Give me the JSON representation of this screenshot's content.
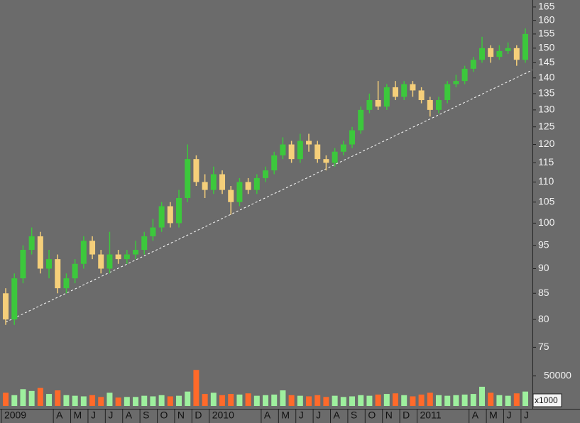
{
  "chart_data": [
    {
      "type": "candlestick",
      "x": [
        0.25,
        0.75,
        1.25,
        1.75,
        2.25,
        2.75,
        3.25,
        3.75,
        4.25,
        4.75,
        5.25,
        5.75,
        6.25,
        6.75,
        7.25,
        7.75,
        8.25,
        8.75,
        9.25,
        9.75,
        10.25,
        10.75,
        11.25,
        11.75,
        12.25,
        12.75,
        13.25,
        13.75,
        14.25,
        14.75,
        15.25,
        15.75,
        16.25,
        16.75,
        17.25,
        17.75,
        18.25,
        18.75,
        19.25,
        19.75,
        20.25,
        20.75,
        21.25,
        21.75,
        22.25,
        22.75,
        23.25,
        23.75,
        24.25,
        24.75,
        25.25,
        25.75,
        26.25,
        26.75,
        27.25,
        27.75,
        28.25,
        28.75,
        29.25,
        29.75,
        30.25
      ],
      "series": [
        {
          "open": [
            85,
            80,
            88,
            94,
            97,
            90,
            92,
            86,
            88,
            91,
            96,
            93,
            90,
            93,
            92,
            93,
            94,
            97,
            99,
            104,
            100,
            106,
            116,
            110,
            108,
            112,
            108,
            105,
            110,
            108,
            111,
            113,
            117,
            120,
            116,
            121,
            120,
            116,
            115,
            118,
            120,
            124,
            130,
            133,
            131,
            137,
            134,
            138,
            136,
            133,
            130,
            133,
            138,
            139,
            143,
            146,
            150,
            147,
            149,
            150,
            146
          ],
          "high": [
            86,
            89,
            95,
            99,
            98,
            94,
            93,
            89,
            92,
            97,
            97,
            94,
            98,
            94,
            94,
            96,
            98,
            101,
            105,
            105,
            108,
            120,
            117,
            112,
            114,
            113,
            109,
            111,
            111,
            112,
            114,
            118,
            122,
            121,
            123,
            123,
            121,
            117,
            119,
            121,
            125,
            131,
            135,
            139,
            138,
            139,
            139,
            139,
            137,
            134,
            134,
            139,
            141,
            144,
            147,
            154,
            151,
            151,
            152,
            151,
            157
          ],
          "low": [
            79,
            79,
            87,
            93,
            89,
            88,
            85,
            85,
            87,
            90,
            92,
            89,
            89,
            91,
            91,
            92,
            93,
            96,
            98,
            99,
            99,
            105,
            109,
            106,
            107,
            107,
            102,
            104,
            107,
            107,
            110,
            112,
            116,
            115,
            115,
            118,
            115,
            113,
            114,
            117,
            119,
            123,
            129,
            130,
            130,
            133,
            133,
            134,
            132,
            128,
            129,
            132,
            137,
            138,
            142,
            145,
            145,
            146,
            148,
            144,
            145
          ],
          "close": [
            80,
            88,
            94,
            97,
            90,
            92,
            86,
            88,
            91,
            96,
            93,
            90,
            93,
            92,
            93,
            94,
            97,
            99,
            104,
            100,
            106,
            116,
            110,
            108,
            112,
            108,
            105,
            110,
            108,
            111,
            113,
            117,
            120,
            116,
            121,
            120,
            116,
            115,
            118,
            120,
            124,
            130,
            133,
            131,
            137,
            134,
            138,
            136,
            133,
            130,
            133,
            138,
            139,
            143,
            146,
            150,
            147,
            149,
            150,
            146,
            155
          ]
        }
      ],
      "up_color": "#3cc83c",
      "down_color": "#f5cf7a",
      "trendline": {
        "x": [
          0.25,
          30.66
        ],
        "y": [
          79.5,
          142.6
        ],
        "color": "#ffffff"
      },
      "log_y": true,
      "ylim": [
        73.7,
        167.7
      ],
      "yticks": [
        75,
        80,
        85,
        90,
        95,
        100,
        105,
        110,
        115,
        120,
        125,
        130,
        135,
        140,
        145,
        150,
        155,
        160,
        165
      ],
      "xlim": [
        -0.08,
        30.66
      ],
      "xticks": [
        {
          "value": 0,
          "label": "2009"
        },
        {
          "value": 3,
          "label": "A"
        },
        {
          "value": 4,
          "label": "M"
        },
        {
          "value": 5,
          "label": "J"
        },
        {
          "value": 6,
          "label": "J"
        },
        {
          "value": 7,
          "label": "A"
        },
        {
          "value": 8,
          "label": "S"
        },
        {
          "value": 9,
          "label": "O"
        },
        {
          "value": 10,
          "label": "N"
        },
        {
          "value": 11,
          "label": "D"
        },
        {
          "value": 12,
          "label": "2010"
        },
        {
          "value": 15,
          "label": "A"
        },
        {
          "value": 16,
          "label": "M"
        },
        {
          "value": 17,
          "label": "J"
        },
        {
          "value": 18,
          "label": "J"
        },
        {
          "value": 19,
          "label": "A"
        },
        {
          "value": 20,
          "label": "S"
        },
        {
          "value": 21,
          "label": "O"
        },
        {
          "value": 22,
          "label": "N"
        },
        {
          "value": 23,
          "label": "D"
        },
        {
          "value": 24,
          "label": "2011"
        },
        {
          "value": 27,
          "label": "A"
        },
        {
          "value": 28,
          "label": "M"
        },
        {
          "value": 29,
          "label": "J"
        },
        {
          "value": 30,
          "label": "J"
        }
      ]
    },
    {
      "type": "bar",
      "x": [
        0.25,
        0.75,
        1.25,
        1.75,
        2.25,
        2.75,
        3.25,
        3.75,
        4.25,
        4.75,
        5.25,
        5.75,
        6.25,
        6.75,
        7.25,
        7.75,
        8.25,
        8.75,
        9.25,
        9.75,
        10.25,
        10.75,
        11.25,
        11.75,
        12.25,
        12.75,
        13.25,
        13.75,
        14.25,
        14.75,
        15.25,
        15.75,
        16.25,
        16.75,
        17.25,
        17.75,
        18.25,
        18.75,
        19.25,
        19.75,
        20.25,
        20.75,
        21.25,
        21.75,
        22.25,
        22.75,
        23.25,
        23.75,
        24.25,
        24.75,
        25.25,
        25.75,
        26.25,
        26.75,
        27.25,
        27.75,
        28.25,
        28.75,
        29.25,
        29.75,
        30.25
      ],
      "values": [
        22000,
        18000,
        28000,
        25000,
        30000,
        20000,
        26000,
        18000,
        17000,
        16000,
        18000,
        15000,
        22000,
        14000,
        15000,
        15000,
        17000,
        16000,
        18000,
        16000,
        17000,
        24000,
        60000,
        20000,
        22000,
        18000,
        20000,
        19000,
        21000,
        17000,
        18000,
        19000,
        26000,
        18000,
        17000,
        16000,
        18000,
        15000,
        17000,
        15000,
        16000,
        18000,
        17000,
        19000,
        20000,
        21000,
        18000,
        16000,
        19000,
        22000,
        18000,
        17000,
        18000,
        19000,
        20000,
        32000,
        22000,
        18000,
        17000,
        21000,
        24000
      ],
      "up_color": "#9ef09e",
      "down_color": "#ff6a2a",
      "ylim": [
        0,
        78000
      ],
      "yticks": [
        50000
      ],
      "unit_label": "x1000"
    }
  ]
}
